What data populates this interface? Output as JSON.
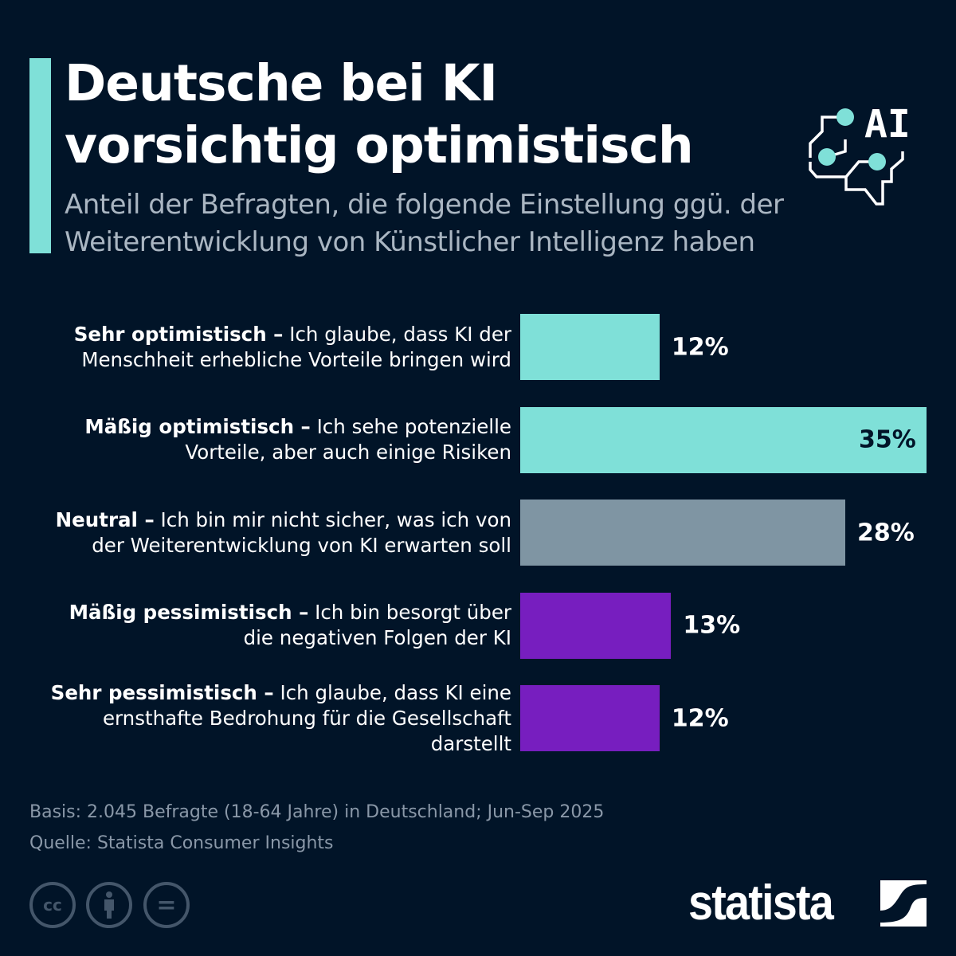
{
  "header": {
    "title": "Deutsche bei KI vorsichtig optimistisch",
    "subtitle": "Anteil der Befragten, die folgende Einstellung ggü. der Weiterentwicklung von Künstlicher Intelligenz haben",
    "icon": "ai-brain-circuit-icon",
    "icon_text": "AI"
  },
  "chart_data": {
    "type": "bar",
    "orientation": "horizontal",
    "unit": "%",
    "categories": [
      {
        "bold": "Sehr optimistisch –",
        "text": " Ich glaube, dass KI der Menschheit erhebliche Vorteile bringen wird"
      },
      {
        "bold": "Mäßig optimistisch –",
        "text": " Ich sehe potenzielle Vorteile, aber auch einige Risiken"
      },
      {
        "bold": "Neutral –",
        "text": " Ich bin mir nicht sicher, was ich von der Weiterentwicklung von KI erwarten soll"
      },
      {
        "bold": "Mäßig pessimistisch –",
        "text": " Ich bin besorgt über die negativen Folgen der KI"
      },
      {
        "bold": "Sehr pessimistisch –",
        "text": " Ich glaube, dass KI eine ernsthafte Bedrohung für die Gesellschaft darstellt"
      }
    ],
    "values": [
      12,
      35,
      28,
      13,
      12
    ],
    "labels": [
      "12%",
      "35%",
      "28%",
      "13%",
      "12%"
    ],
    "colors": [
      "#7fe0d8",
      "#7fe0d8",
      "#7f95a3",
      "#771ebf",
      "#771ebf"
    ]
  },
  "footer": {
    "basis": "Basis: 2.045 Befragte (18-64 Jahre) in Deutschland; Jun-Sep 2025",
    "source": "Quelle: Statista Consumer Insights",
    "license_icons": [
      "cc",
      "by",
      "nd"
    ],
    "cc_text": "cc",
    "nd_text": "=",
    "logo": "statista"
  }
}
